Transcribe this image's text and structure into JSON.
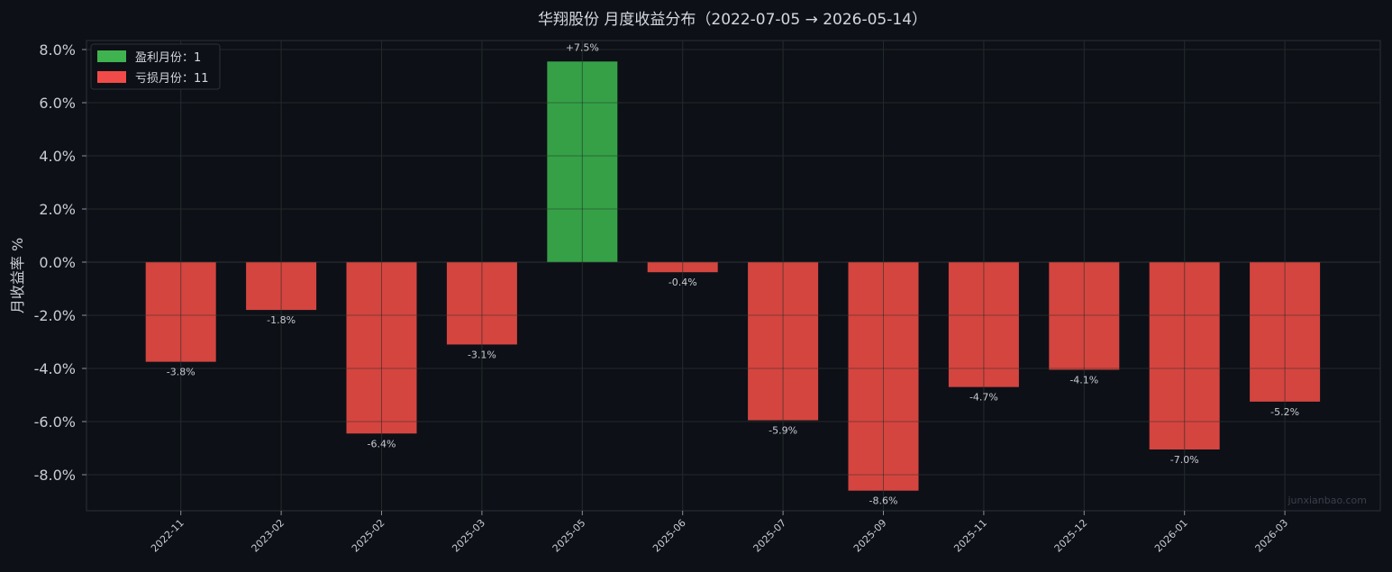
{
  "chart_data": {
    "type": "bar",
    "title": "华翔股份 月度收益分布（2022-07-05 → 2026-05-14）",
    "ylabel": "月收益率 %",
    "xlabel": "",
    "ylim": [
      -9.4,
      8.3
    ],
    "yticks": [
      8,
      6,
      4,
      2,
      0,
      -2,
      -4,
      -6,
      -8
    ],
    "ytick_labels": [
      "8.0%",
      "6.0%",
      "4.0%",
      "2.0%",
      "0.0%",
      "-2.0%",
      "-4.0%",
      "-6.0%",
      "-8.0%"
    ],
    "categories": [
      "2022-11",
      "2023-02",
      "2025-02",
      "2025-03",
      "2025-05",
      "2025-06",
      "2025-07",
      "2025-09",
      "2025-11",
      "2025-12",
      "2026-01",
      "2026-03"
    ],
    "values": [
      -3.75,
      -1.8,
      -6.45,
      -3.1,
      7.55,
      -0.38,
      -5.95,
      -8.6,
      -4.7,
      -4.05,
      -7.05,
      -5.25
    ],
    "data_labels": [
      "-3.8%",
      "-1.8%",
      "-6.4%",
      "-3.1%",
      "+7.5%",
      "-0.4%",
      "-5.9%",
      "-8.6%",
      "-4.7%",
      "-4.1%",
      "-7.0%",
      "-5.2%"
    ],
    "grid": true,
    "legend_position": "top-left",
    "legend": [
      {
        "label": "盈利月份：1",
        "color": "#3fb34f"
      },
      {
        "label": "亏损月份：11",
        "color": "#f04b48"
      }
    ],
    "colors": {
      "profit": "#36a047",
      "loss": "#d44540"
    }
  },
  "watermark": "junxianbao.com"
}
